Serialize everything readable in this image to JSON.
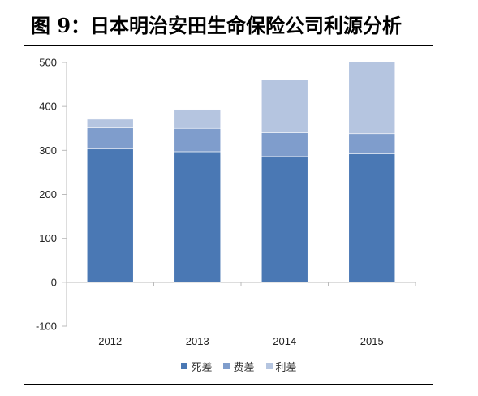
{
  "title": "图 9：日本明治安田生命保险公司利源分析",
  "chart_data": {
    "type": "bar",
    "stacked": true,
    "categories": [
      "2012",
      "2013",
      "2014",
      "2015"
    ],
    "series": [
      {
        "name": "死差",
        "values": [
          303,
          297,
          286,
          292
        ],
        "color": "#4A78B4"
      },
      {
        "name": "费差",
        "values": [
          48,
          53,
          54,
          46
        ],
        "color": "#7F9DCC"
      },
      {
        "name": "利差",
        "values": [
          20,
          43,
          120,
          163
        ],
        "color": "#B5C5E0"
      }
    ],
    "ylim": [
      -100,
      500
    ],
    "yticks": [
      -100,
      0,
      100,
      200,
      300,
      400,
      500
    ],
    "xlabel": "",
    "ylabel": "",
    "grid": false,
    "legend_position": "bottom"
  }
}
